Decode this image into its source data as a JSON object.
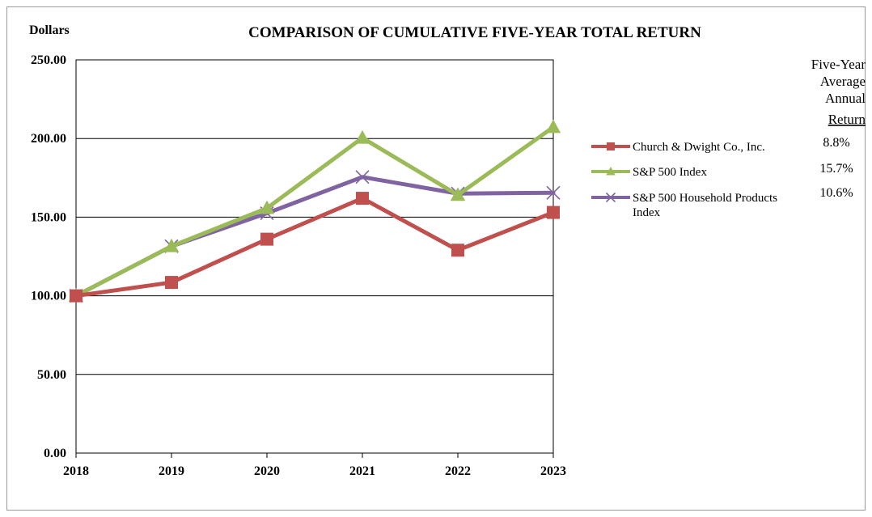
{
  "chart_data": {
    "type": "line",
    "title": "COMPARISON OF CUMULATIVE FIVE-YEAR TOTAL RETURN",
    "ylabel": "Dollars",
    "xlabel": "",
    "ylim": [
      0,
      250
    ],
    "yticks": [
      "0.00",
      "50.00",
      "100.00",
      "150.00",
      "200.00",
      "250.00"
    ],
    "ytick_values": [
      0,
      50,
      100,
      150,
      200,
      250
    ],
    "x": [
      "2018",
      "2019",
      "2020",
      "2021",
      "2022",
      "2023"
    ],
    "grid": "horizontal",
    "legend_position": "right",
    "series": [
      {
        "name": "Church & Dwight Co., Inc.",
        "legend_lines": [
          "Church & Dwight Co., Inc."
        ],
        "values": [
          100,
          108.5,
          136,
          162,
          129,
          153
        ],
        "color": "#c0504d",
        "marker": "square",
        "avg_return": "8.8%"
      },
      {
        "name": "S&P 500 Index",
        "legend_lines": [
          "S&P 500 Index"
        ],
        "values": [
          100,
          131.5,
          155.7,
          200.4,
          164.1,
          207.2
        ],
        "color": "#9bbb59",
        "marker": "triangle",
        "avg_return": "15.7%"
      },
      {
        "name": "S&P 500 Household Products Index",
        "legend_lines": [
          "S&P 500 Household Products",
          "Index"
        ],
        "values": [
          100,
          131.5,
          152.5,
          175.5,
          165,
          165.5
        ],
        "color": "#8064a2",
        "marker": "x",
        "avg_return": "10.6%"
      }
    ],
    "returns_header": [
      "Five-Year",
      "Average",
      "Annual",
      "Return"
    ]
  }
}
